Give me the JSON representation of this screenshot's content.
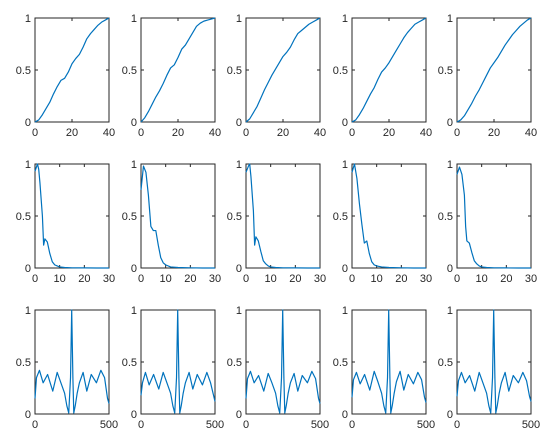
{
  "figure": {
    "background": "#ffffff",
    "line_color": "#0072BD",
    "axis_color": "#262626"
  },
  "chart_data": [
    {
      "type": "line",
      "row": 0,
      "col": 0,
      "xlim": [
        0,
        40
      ],
      "ylim": [
        0,
        1
      ],
      "xticks": [
        "0",
        "20",
        "40"
      ],
      "yticks": [
        "0",
        "0.5",
        "1"
      ],
      "grid": false,
      "series": [
        {
          "x": [
            0,
            2,
            4,
            6,
            8,
            10,
            12,
            14,
            16,
            18,
            20,
            22,
            24,
            26,
            28,
            30,
            32,
            34,
            36,
            38,
            40
          ],
          "y": [
            0,
            0.02,
            0.07,
            0.13,
            0.19,
            0.27,
            0.34,
            0.4,
            0.42,
            0.48,
            0.56,
            0.61,
            0.65,
            0.72,
            0.8,
            0.85,
            0.89,
            0.93,
            0.96,
            0.98,
            1.0
          ]
        }
      ]
    },
    {
      "type": "line",
      "row": 0,
      "col": 1,
      "xlim": [
        0,
        40
      ],
      "ylim": [
        0,
        1
      ],
      "xticks": [
        "0",
        "20",
        "40"
      ],
      "yticks": [
        "0",
        "0.5",
        "1"
      ],
      "grid": false,
      "series": [
        {
          "x": [
            0,
            2,
            4,
            6,
            8,
            10,
            12,
            14,
            16,
            18,
            20,
            22,
            24,
            26,
            28,
            30,
            32,
            34,
            36,
            38,
            40
          ],
          "y": [
            0,
            0.04,
            0.1,
            0.17,
            0.24,
            0.3,
            0.37,
            0.45,
            0.52,
            0.55,
            0.62,
            0.7,
            0.74,
            0.8,
            0.86,
            0.92,
            0.95,
            0.97,
            0.98,
            0.99,
            1.0
          ]
        }
      ]
    },
    {
      "type": "line",
      "row": 0,
      "col": 2,
      "xlim": [
        0,
        40
      ],
      "ylim": [
        0,
        1
      ],
      "xticks": [
        "0",
        "20",
        "40"
      ],
      "yticks": [
        "0",
        "0.5",
        "1"
      ],
      "grid": false,
      "series": [
        {
          "x": [
            0,
            2,
            4,
            6,
            8,
            10,
            12,
            14,
            16,
            18,
            20,
            22,
            24,
            26,
            28,
            30,
            32,
            34,
            36,
            38,
            40
          ],
          "y": [
            0,
            0.03,
            0.09,
            0.15,
            0.23,
            0.31,
            0.38,
            0.45,
            0.51,
            0.57,
            0.63,
            0.67,
            0.72,
            0.79,
            0.85,
            0.88,
            0.91,
            0.94,
            0.96,
            0.98,
            1.0
          ]
        }
      ]
    },
    {
      "type": "line",
      "row": 0,
      "col": 3,
      "xlim": [
        0,
        40
      ],
      "ylim": [
        0,
        1
      ],
      "xticks": [
        "0",
        "20",
        "40"
      ],
      "yticks": [
        "0",
        "0.5",
        "1"
      ],
      "grid": false,
      "series": [
        {
          "x": [
            0,
            2,
            4,
            6,
            8,
            10,
            12,
            14,
            16,
            18,
            20,
            22,
            24,
            26,
            28,
            30,
            32,
            34,
            36,
            38,
            40
          ],
          "y": [
            0,
            0.02,
            0.07,
            0.13,
            0.2,
            0.27,
            0.33,
            0.41,
            0.48,
            0.52,
            0.57,
            0.63,
            0.69,
            0.75,
            0.81,
            0.86,
            0.9,
            0.94,
            0.96,
            0.98,
            1.0
          ]
        }
      ]
    },
    {
      "type": "line",
      "row": 0,
      "col": 4,
      "xlim": [
        0,
        40
      ],
      "ylim": [
        0,
        1
      ],
      "xticks": [
        "0",
        "20",
        "40"
      ],
      "yticks": [
        "0",
        "0.5",
        "1"
      ],
      "grid": false,
      "series": [
        {
          "x": [
            0,
            2,
            4,
            6,
            8,
            10,
            12,
            14,
            16,
            18,
            20,
            22,
            24,
            26,
            28,
            30,
            32,
            34,
            36,
            38,
            40
          ],
          "y": [
            0,
            0.02,
            0.06,
            0.12,
            0.18,
            0.25,
            0.31,
            0.38,
            0.45,
            0.52,
            0.57,
            0.62,
            0.68,
            0.74,
            0.79,
            0.84,
            0.88,
            0.92,
            0.95,
            0.98,
            1.0
          ]
        }
      ]
    },
    {
      "type": "line",
      "row": 1,
      "col": 0,
      "xlim": [
        0,
        30
      ],
      "ylim": [
        0,
        1
      ],
      "xticks": [
        "0",
        "10",
        "20",
        "30"
      ],
      "yticks": [
        "0",
        "0.5",
        "1"
      ],
      "grid": false,
      "series": [
        {
          "x": [
            0,
            1,
            1.5,
            2,
            3,
            3.5,
            4,
            5,
            6,
            7,
            8,
            9,
            10,
            12,
            15,
            20,
            25,
            30
          ],
          "y": [
            0.93,
            1.0,
            0.95,
            0.82,
            0.5,
            0.22,
            0.28,
            0.25,
            0.14,
            0.06,
            0.03,
            0.02,
            0.01,
            0.005,
            0.002,
            0.001,
            0,
            0
          ]
        }
      ]
    },
    {
      "type": "line",
      "row": 1,
      "col": 1,
      "xlim": [
        0,
        30
      ],
      "ylim": [
        0,
        1
      ],
      "xticks": [
        "0",
        "10",
        "20",
        "30"
      ],
      "yticks": [
        "0",
        "0.5",
        "1"
      ],
      "grid": false,
      "series": [
        {
          "x": [
            0,
            1,
            2,
            3,
            4,
            5,
            6,
            7,
            8,
            9,
            10,
            12,
            15,
            20,
            25,
            30
          ],
          "y": [
            0.75,
            0.98,
            0.92,
            0.7,
            0.4,
            0.36,
            0.36,
            0.22,
            0.1,
            0.05,
            0.03,
            0.01,
            0.005,
            0.002,
            0,
            0
          ]
        }
      ]
    },
    {
      "type": "line",
      "row": 1,
      "col": 2,
      "xlim": [
        0,
        30
      ],
      "ylim": [
        0,
        1
      ],
      "xticks": [
        "0",
        "10",
        "20",
        "30"
      ],
      "yticks": [
        "0",
        "0.5",
        "1"
      ],
      "grid": false,
      "series": [
        {
          "x": [
            0,
            1,
            1.5,
            2,
            3,
            3.5,
            4,
            5,
            6,
            7,
            8,
            9,
            10,
            12,
            15,
            20,
            25,
            30
          ],
          "y": [
            0.92,
            0.98,
            1.0,
            0.88,
            0.55,
            0.22,
            0.3,
            0.26,
            0.16,
            0.07,
            0.04,
            0.02,
            0.01,
            0.005,
            0.002,
            0.001,
            0,
            0
          ]
        }
      ]
    },
    {
      "type": "line",
      "row": 1,
      "col": 3,
      "xlim": [
        0,
        30
      ],
      "ylim": [
        0,
        1
      ],
      "xticks": [
        "0",
        "10",
        "20",
        "30"
      ],
      "yticks": [
        "0",
        "0.5",
        "1"
      ],
      "grid": false,
      "series": [
        {
          "x": [
            0,
            1,
            2,
            3,
            4,
            5,
            6,
            7,
            8,
            9,
            10,
            12,
            15,
            20,
            25,
            30
          ],
          "y": [
            0.92,
            1.0,
            0.86,
            0.62,
            0.42,
            0.24,
            0.26,
            0.14,
            0.06,
            0.03,
            0.02,
            0.01,
            0.005,
            0.002,
            0,
            0
          ]
        }
      ]
    },
    {
      "type": "line",
      "row": 1,
      "col": 4,
      "xlim": [
        0,
        30
      ],
      "ylim": [
        0,
        1
      ],
      "xticks": [
        "0",
        "10",
        "20",
        "30"
      ],
      "yticks": [
        "0",
        "0.5",
        "1"
      ],
      "grid": false,
      "series": [
        {
          "x": [
            0,
            1,
            2,
            3,
            3.5,
            4,
            5,
            6,
            7,
            8,
            9,
            10,
            12,
            15,
            20,
            25,
            30
          ],
          "y": [
            0.9,
            0.97,
            0.9,
            0.7,
            0.4,
            0.26,
            0.24,
            0.15,
            0.07,
            0.04,
            0.02,
            0.01,
            0.005,
            0.002,
            0.001,
            0,
            0
          ]
        }
      ]
    },
    {
      "type": "line",
      "row": 2,
      "col": 0,
      "xlim": [
        0,
        500
      ],
      "ylim": [
        0,
        1
      ],
      "xticks": [
        "0",
        "500"
      ],
      "yticks": [
        "0",
        "0.5",
        "1"
      ],
      "grid": false,
      "series": [
        {
          "x": [
            0,
            10,
            30,
            55,
            85,
            120,
            150,
            175,
            200,
            215,
            228,
            240,
            248,
            256,
            262,
            272,
            285,
            300,
            325,
            350,
            380,
            415,
            445,
            470,
            490,
            500
          ],
          "y": [
            0.15,
            0.35,
            0.42,
            0.3,
            0.38,
            0.22,
            0.4,
            0.3,
            0.2,
            0.08,
            0.01,
            0.35,
            1.0,
            0.35,
            0.01,
            0.08,
            0.2,
            0.3,
            0.4,
            0.22,
            0.38,
            0.3,
            0.42,
            0.35,
            0.15,
            0.1
          ]
        }
      ]
    },
    {
      "type": "line",
      "row": 2,
      "col": 1,
      "xlim": [
        0,
        500
      ],
      "ylim": [
        0,
        1
      ],
      "xticks": [
        "0",
        "500"
      ],
      "yticks": [
        "0",
        "0.5",
        "1"
      ],
      "grid": false,
      "series": [
        {
          "x": [
            0,
            10,
            30,
            55,
            85,
            120,
            150,
            175,
            200,
            215,
            228,
            240,
            248,
            256,
            262,
            272,
            285,
            300,
            325,
            350,
            380,
            415,
            445,
            470,
            490,
            500
          ],
          "y": [
            0.18,
            0.3,
            0.4,
            0.28,
            0.38,
            0.24,
            0.4,
            0.3,
            0.2,
            0.08,
            0.01,
            0.35,
            1.0,
            0.35,
            0.01,
            0.08,
            0.2,
            0.3,
            0.4,
            0.24,
            0.38,
            0.28,
            0.4,
            0.3,
            0.18,
            0.12
          ]
        }
      ]
    },
    {
      "type": "line",
      "row": 2,
      "col": 2,
      "xlim": [
        0,
        500
      ],
      "ylim": [
        0,
        1
      ],
      "xticks": [
        "0",
        "500"
      ],
      "yticks": [
        "0",
        "0.5",
        "1"
      ],
      "grid": false,
      "series": [
        {
          "x": [
            0,
            10,
            30,
            55,
            85,
            120,
            150,
            175,
            200,
            215,
            228,
            240,
            248,
            256,
            262,
            272,
            285,
            300,
            325,
            350,
            380,
            415,
            445,
            470,
            490,
            500
          ],
          "y": [
            0.15,
            0.34,
            0.41,
            0.3,
            0.37,
            0.22,
            0.39,
            0.3,
            0.2,
            0.08,
            0.01,
            0.35,
            1.0,
            0.35,
            0.01,
            0.08,
            0.2,
            0.3,
            0.39,
            0.22,
            0.37,
            0.3,
            0.41,
            0.34,
            0.15,
            0.1
          ]
        }
      ]
    },
    {
      "type": "line",
      "row": 2,
      "col": 3,
      "xlim": [
        0,
        500
      ],
      "ylim": [
        0,
        1
      ],
      "xticks": [
        "0",
        "500"
      ],
      "yticks": [
        "0",
        "0.5",
        "1"
      ],
      "grid": false,
      "series": [
        {
          "x": [
            0,
            10,
            30,
            55,
            85,
            120,
            150,
            175,
            200,
            215,
            228,
            240,
            248,
            256,
            262,
            272,
            285,
            300,
            325,
            350,
            380,
            415,
            445,
            470,
            490,
            500
          ],
          "y": [
            0.16,
            0.33,
            0.4,
            0.29,
            0.38,
            0.23,
            0.41,
            0.31,
            0.2,
            0.08,
            0.01,
            0.35,
            1.0,
            0.35,
            0.01,
            0.08,
            0.2,
            0.31,
            0.41,
            0.23,
            0.38,
            0.29,
            0.4,
            0.33,
            0.16,
            0.11
          ]
        }
      ]
    },
    {
      "type": "line",
      "row": 2,
      "col": 4,
      "xlim": [
        0,
        500
      ],
      "ylim": [
        0,
        1
      ],
      "xticks": [
        "0",
        "500"
      ],
      "yticks": [
        "0",
        "0.5",
        "1"
      ],
      "grid": false,
      "series": [
        {
          "x": [
            0,
            10,
            30,
            55,
            85,
            120,
            150,
            175,
            200,
            215,
            228,
            240,
            248,
            256,
            262,
            272,
            285,
            300,
            325,
            350,
            380,
            415,
            445,
            470,
            490,
            500
          ],
          "y": [
            0.17,
            0.32,
            0.4,
            0.3,
            0.37,
            0.22,
            0.4,
            0.3,
            0.2,
            0.08,
            0.01,
            0.35,
            1.0,
            0.35,
            0.01,
            0.08,
            0.2,
            0.3,
            0.4,
            0.22,
            0.37,
            0.3,
            0.4,
            0.32,
            0.17,
            0.12
          ]
        }
      ]
    }
  ]
}
